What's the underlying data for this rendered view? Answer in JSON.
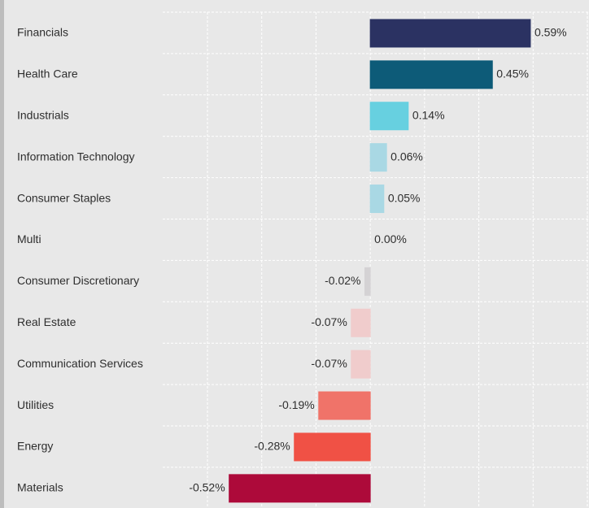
{
  "chart_data": {
    "type": "bar",
    "orientation": "horizontal",
    "categories": [
      "Financials",
      "Health Care",
      "Industrials",
      "Information Technology",
      "Consumer Staples",
      "Multi",
      "Consumer Discretionary",
      "Real Estate",
      "Communication Services",
      "Utilities",
      "Energy",
      "Materials"
    ],
    "values": [
      0.59,
      0.45,
      0.14,
      0.06,
      0.05,
      0.0,
      -0.02,
      -0.07,
      -0.07,
      -0.19,
      -0.28,
      -0.52
    ],
    "value_labels": [
      "0.59%",
      "0.45%",
      "0.14%",
      "0.06%",
      "0.05%",
      "0.00%",
      "-0.02%",
      "-0.07%",
      "-0.07%",
      "-0.19%",
      "-0.28%",
      "-0.52%"
    ],
    "colors": [
      "#2b3262",
      "#0d5b78",
      "#67d0e0",
      "#a9d8e4",
      "#a9d8e4",
      "#a9d8e4",
      "#d4d2d4",
      "#f0cccc",
      "#f0cccc",
      "#f07369",
      "#f05145",
      "#ad0a3a"
    ],
    "xlim": [
      -0.6,
      0.8
    ],
    "xticks": [
      -0.6,
      -0.4,
      -0.2,
      0,
      0.2,
      0.4,
      0.6,
      0.8
    ],
    "grid": true
  }
}
